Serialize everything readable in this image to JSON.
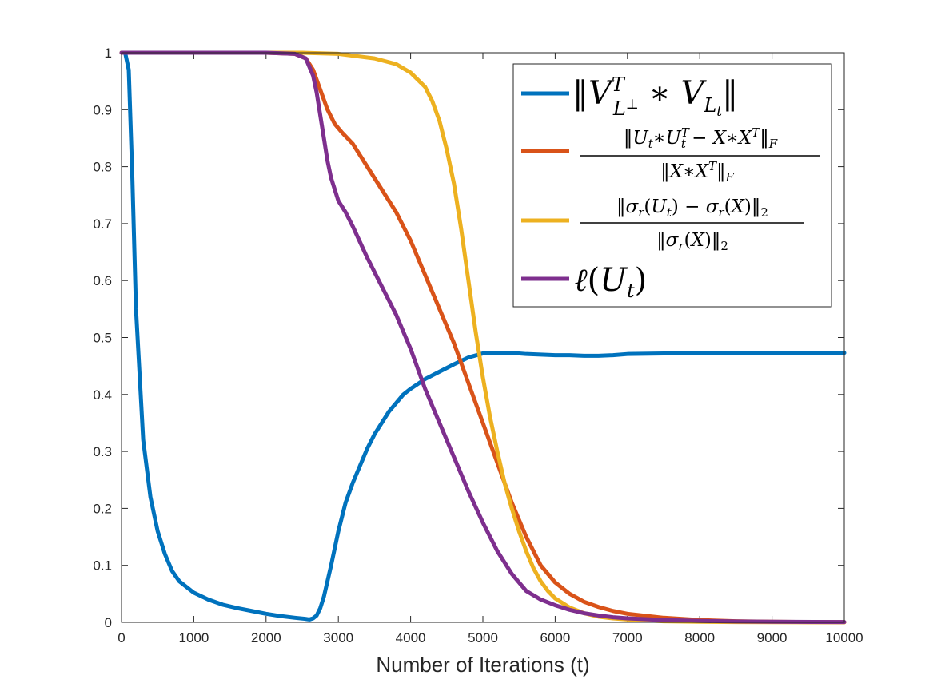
{
  "chart_data": {
    "type": "line",
    "title": "",
    "xlabel": "Number of Iterations (t)",
    "ylabel": "",
    "xlim": [
      0,
      10000
    ],
    "ylim": [
      0,
      1
    ],
    "xticks": [
      "0",
      "1000",
      "2000",
      "3000",
      "4000",
      "5000",
      "6000",
      "7000",
      "8000",
      "9000",
      "10000"
    ],
    "yticks": [
      "0",
      "0.1",
      "0.2",
      "0.3",
      "0.4",
      "0.5",
      "0.6",
      "0.7",
      "0.8",
      "0.9",
      "1"
    ],
    "grid": false,
    "legend_position": "top-right",
    "series": [
      {
        "name": "‖V_{L⊥}^T ∗ V_{L_t}‖",
        "color": "#0072BD",
        "x": [
          0,
          50,
          100,
          150,
          200,
          300,
          400,
          500,
          600,
          700,
          800,
          1000,
          1200,
          1400,
          1600,
          1800,
          2000,
          2200,
          2400,
          2550,
          2600,
          2650,
          2700,
          2750,
          2800,
          2900,
          3000,
          3100,
          3200,
          3300,
          3400,
          3500,
          3600,
          3700,
          3800,
          3900,
          4000,
          4200,
          4400,
          4600,
          4800,
          5000,
          5200,
          5400,
          5600,
          5800,
          6000,
          6200,
          6400,
          6600,
          6800,
          7000,
          7500,
          8000,
          8500,
          9000,
          9500,
          10000
        ],
        "y": [
          1.0,
          1.0,
          0.97,
          0.78,
          0.55,
          0.32,
          0.22,
          0.16,
          0.12,
          0.09,
          0.072,
          0.052,
          0.04,
          0.031,
          0.025,
          0.02,
          0.015,
          0.011,
          0.008,
          0.006,
          0.005,
          0.007,
          0.012,
          0.025,
          0.045,
          0.1,
          0.16,
          0.21,
          0.245,
          0.275,
          0.305,
          0.33,
          0.35,
          0.37,
          0.385,
          0.4,
          0.41,
          0.427,
          0.44,
          0.453,
          0.465,
          0.472,
          0.473,
          0.473,
          0.471,
          0.47,
          0.469,
          0.469,
          0.468,
          0.468,
          0.469,
          0.471,
          0.472,
          0.472,
          0.473,
          0.473,
          0.473,
          0.473
        ]
      },
      {
        "name": "‖U_t∗U_t^T − X∗X^T‖_F / ‖X∗X^T‖_F",
        "color": "#D95319",
        "x": [
          0,
          1000,
          2000,
          2400,
          2550,
          2650,
          2750,
          2850,
          2950,
          3050,
          3200,
          3400,
          3600,
          3800,
          4000,
          4200,
          4400,
          4600,
          4800,
          5000,
          5200,
          5400,
          5600,
          5800,
          6000,
          6200,
          6400,
          6600,
          6800,
          7000,
          7500,
          8000,
          8500,
          9000,
          9500,
          10000
        ],
        "y": [
          1.0,
          1.0,
          1.0,
          0.998,
          0.99,
          0.97,
          0.935,
          0.9,
          0.875,
          0.86,
          0.84,
          0.8,
          0.76,
          0.72,
          0.67,
          0.61,
          0.55,
          0.49,
          0.42,
          0.35,
          0.28,
          0.21,
          0.15,
          0.1,
          0.07,
          0.05,
          0.036,
          0.027,
          0.02,
          0.015,
          0.008,
          0.004,
          0.002,
          0.001,
          0.0005,
          0.0003
        ]
      },
      {
        "name": "‖σ_r(U_t) − σ_r(X)‖_2 / ‖σ_r(X)‖_2",
        "color": "#EDB120",
        "x": [
          0,
          1000,
          2000,
          2500,
          3000,
          3500,
          3800,
          4000,
          4200,
          4300,
          4400,
          4500,
          4600,
          4700,
          4800,
          4900,
          5000,
          5100,
          5200,
          5300,
          5400,
          5500,
          5600,
          5700,
          5800,
          5900,
          6000,
          6200,
          6400,
          6600,
          6800,
          7000,
          7500,
          8000,
          8500,
          9000,
          10000
        ],
        "y": [
          1.0,
          1.0,
          1.0,
          1.0,
          0.998,
          0.99,
          0.98,
          0.965,
          0.94,
          0.915,
          0.88,
          0.83,
          0.77,
          0.69,
          0.6,
          0.51,
          0.43,
          0.36,
          0.3,
          0.245,
          0.2,
          0.16,
          0.125,
          0.095,
          0.072,
          0.055,
          0.042,
          0.026,
          0.016,
          0.01,
          0.007,
          0.005,
          0.002,
          0.001,
          0.0005,
          0.0003,
          0.0001
        ]
      },
      {
        "name": "ℓ(U_t)",
        "color": "#7E2F8E",
        "x": [
          0,
          1000,
          2000,
          2400,
          2550,
          2650,
          2700,
          2750,
          2800,
          2850,
          2900,
          3000,
          3100,
          3200,
          3400,
          3600,
          3800,
          4000,
          4200,
          4400,
          4600,
          4800,
          5000,
          5200,
          5400,
          5600,
          5800,
          6000,
          6200,
          6400,
          6600,
          6800,
          7000,
          7500,
          8000,
          8500,
          9000,
          10000
        ],
        "y": [
          1.0,
          1.0,
          1.0,
          0.998,
          0.99,
          0.96,
          0.93,
          0.89,
          0.85,
          0.81,
          0.78,
          0.74,
          0.72,
          0.695,
          0.64,
          0.59,
          0.54,
          0.48,
          0.41,
          0.35,
          0.29,
          0.23,
          0.175,
          0.125,
          0.085,
          0.055,
          0.04,
          0.03,
          0.022,
          0.016,
          0.012,
          0.009,
          0.007,
          0.004,
          0.0025,
          0.0015,
          0.001,
          0.0005
        ]
      }
    ]
  }
}
